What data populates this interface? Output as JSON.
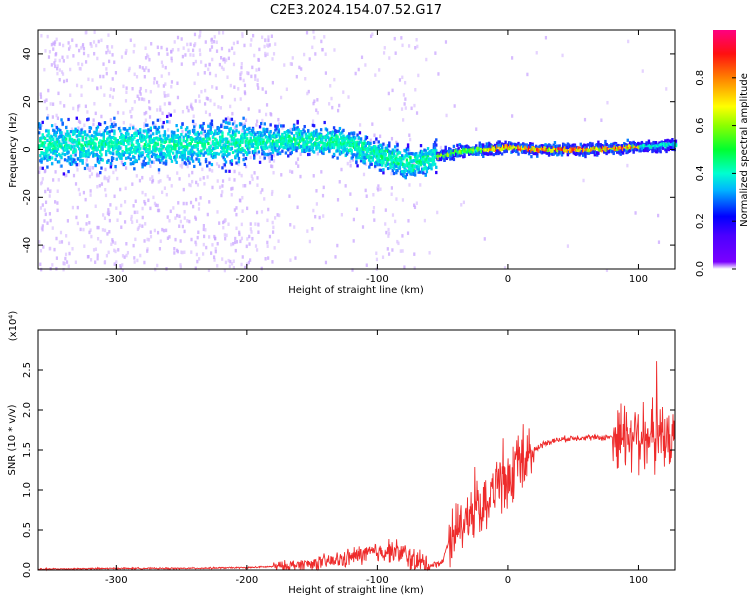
{
  "title": "C2E3.2024.154.07.52.G17",
  "chart_data": [
    {
      "type": "heatmap",
      "xlabel": "Height of straight line (km)",
      "ylabel": "Frequency (Hz)",
      "xlim": [
        -360,
        128
      ],
      "ylim": [
        -50,
        50
      ],
      "xticks": [
        -300,
        -200,
        -100,
        0,
        100
      ],
      "yticks": [
        -40,
        -20,
        0,
        20,
        40
      ],
      "grid": false,
      "colorbar": {
        "label": "Normalized spectral amplitude",
        "range": [
          0,
          1
        ],
        "ticks": [
          0.0,
          0.2,
          0.4,
          0.6,
          0.8
        ],
        "colormap": "rainbow (purple-blue-cyan-green-yellow-red-magenta)"
      },
      "center_trace": {
        "x": [
          -360,
          -250,
          -200,
          -160,
          -130,
          -110,
          -90,
          -75,
          -65,
          -55,
          -40,
          -20,
          0,
          20,
          60,
          100,
          128
        ],
        "y": [
          2,
          2,
          3,
          4,
          3,
          0,
          -4,
          -6,
          -5,
          -3,
          -1,
          0,
          1,
          0,
          0,
          1,
          2
        ]
      }
    },
    {
      "type": "line",
      "xlabel": "Height of straight line (km)",
      "ylabel": "SNR (10 * v/v)",
      "y_multiplier": "(x10⁴)",
      "xlim": [
        -360,
        128
      ],
      "ylim": [
        0,
        3.0
      ],
      "xticks": [
        -300,
        -200,
        -100,
        0,
        100
      ],
      "yticks": [
        0.0,
        0.5,
        1.0,
        1.5,
        2.0,
        2.5
      ],
      "grid": false,
      "series": [
        {
          "color": "#ee2b2b",
          "x": [
            -360,
            -300,
            -250,
            -200,
            -170,
            -150,
            -130,
            -110,
            -100,
            -90,
            -80,
            -70,
            -60,
            -50,
            -45,
            -40,
            -35,
            -30,
            -25,
            -20,
            -15,
            -10,
            -5,
            0,
            5,
            10,
            15,
            20,
            25,
            30,
            40,
            50,
            60,
            70,
            80,
            90,
            100,
            110,
            120,
            128
          ],
          "y": [
            0.01,
            0.02,
            0.02,
            0.03,
            0.05,
            0.08,
            0.12,
            0.2,
            0.22,
            0.25,
            0.2,
            0.1,
            0.05,
            0.1,
            0.4,
            0.55,
            0.6,
            0.7,
            0.75,
            0.85,
            0.9,
            1.0,
            1.05,
            1.1,
            1.2,
            1.3,
            1.4,
            1.5,
            1.55,
            1.6,
            1.63,
            1.65,
            1.66,
            1.65,
            1.67,
            1.7,
            1.7,
            1.65,
            1.6,
            1.6
          ]
        }
      ]
    }
  ]
}
